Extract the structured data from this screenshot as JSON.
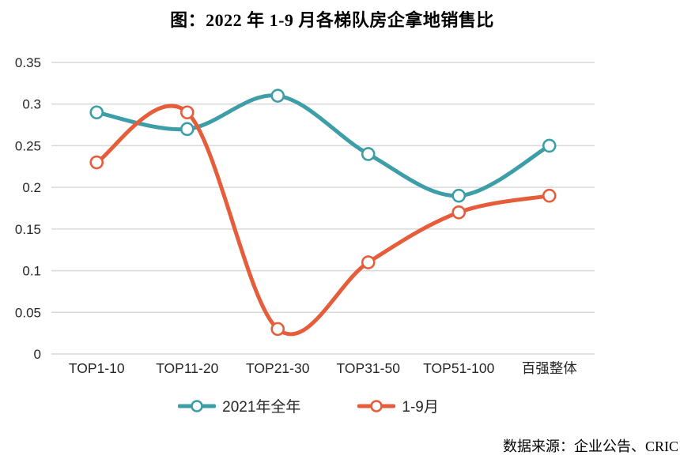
{
  "title": "图：2022 年 1-9 月各梯队房企拿地销售比",
  "source": "数据来源：企业公告、CRIC",
  "colors": {
    "series_2021": "#3E9EA7",
    "series_1_9": "#E65D3C",
    "grid": "#D9D9D9",
    "axis_text": "#262626",
    "marker_fill": "#FFFFFF"
  },
  "chart_data": {
    "type": "line",
    "smooth": true,
    "categories": [
      "TOP1-10",
      "TOP11-20",
      "TOP21-30",
      "TOP31-50",
      "TOP51-100",
      "百强整体"
    ],
    "series": [
      {
        "name": "2021年全年",
        "color": "#3E9EA7",
        "values": [
          0.29,
          0.27,
          0.31,
          0.24,
          0.19,
          0.25
        ]
      },
      {
        "name": "1-9月",
        "color": "#E65D3C",
        "values": [
          0.23,
          0.29,
          0.03,
          0.11,
          0.17,
          0.19
        ]
      }
    ],
    "ylim": [
      0,
      0.35
    ],
    "ytick_step": 0.05,
    "ytick_labels": [
      "0",
      "0.05",
      "0.1",
      "0.15",
      "0.2",
      "0.25",
      "0.3",
      "0.35"
    ],
    "grid": true,
    "legend_position": "bottom"
  }
}
